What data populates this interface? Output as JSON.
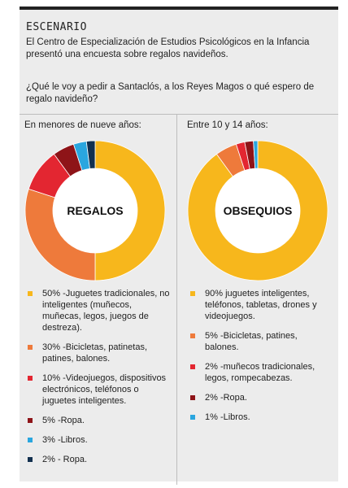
{
  "header": {
    "kicker": "ESCENARIO",
    "intro": "El Centro de Especialización de Estudios Psicológicos en la Infancia presentó una encuesta sobre regalos navideños.",
    "question": "¿Qué le voy a pedir a Santaclós, a los Reyes Magos o qué espero de regalo navideño?"
  },
  "colors": {
    "yellow": "#F7B71C",
    "orange": "#EE7A3B",
    "red": "#E32631",
    "darkred": "#8E1418",
    "lightblue": "#2AA6DF",
    "navy": "#12304F"
  },
  "chart_data": [
    {
      "type": "pie",
      "subtitle": "En menores de nueve años:",
      "center_label": "REGALOS",
      "slices": [
        {
          "value": 50,
          "label": "50% -Juguetes tradicionales, no inteligentes (muñecos, muñecas, legos, juegos de destreza).",
          "color": "#F7B71C"
        },
        {
          "value": 30,
          "label": "30% -Bicicletas, patinetas, patines, balones.",
          "color": "#EE7A3B"
        },
        {
          "value": 10,
          "label": "10% -Videojuegos, dispositivos electrónicos, teléfonos o juguetes inteligentes.",
          "color": "#E32631"
        },
        {
          "value": 5,
          "label": "5% -Ropa.",
          "color": "#8E1418"
        },
        {
          "value": 3,
          "label": "3% -Libros.",
          "color": "#2AA6DF"
        },
        {
          "value": 2,
          "label": "2% - Ropa.",
          "color": "#12304F"
        }
      ]
    },
    {
      "type": "pie",
      "subtitle": "Entre 10 y 14 años:",
      "center_label": "OBSEQUIOS",
      "slices": [
        {
          "value": 90,
          "label": "90% juguetes inteligentes, teléfonos, tabletas, drones y videojuegos.",
          "color": "#F7B71C"
        },
        {
          "value": 5,
          "label": "5% -Bicicletas, patines, balones.",
          "color": "#EE7A3B"
        },
        {
          "value": 2,
          "label": "2% -muñecos tradicionales, legos, rompecabezas.",
          "color": "#E32631"
        },
        {
          "value": 2,
          "label": "2% -Ropa.",
          "color": "#8E1418"
        },
        {
          "value": 1,
          "label": "1% -Libros.",
          "color": "#2AA6DF"
        }
      ]
    }
  ]
}
